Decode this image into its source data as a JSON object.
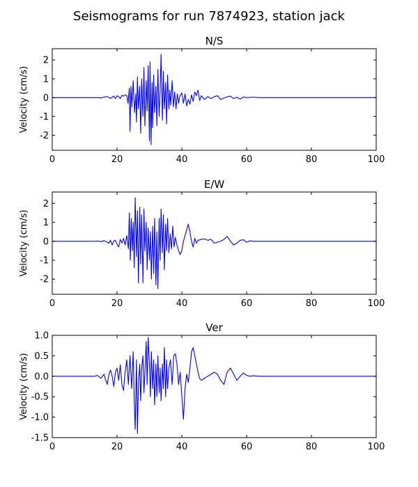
{
  "title": "Seismograms for run 7874923, station jack",
  "chart_data": [
    {
      "type": "line",
      "title": "N/S",
      "xlabel": "",
      "ylabel": "Velocity (cm/s)",
      "xlim": [
        0,
        100
      ],
      "ylim": [
        -2.8,
        2.6
      ],
      "xticks": [
        0,
        20,
        40,
        60,
        80,
        100
      ],
      "yticks": [
        -2,
        -1,
        0,
        1,
        2
      ],
      "grid": false,
      "color": "#0000ff",
      "series": [
        {
          "x": [
            0,
            12,
            14,
            15,
            16,
            17,
            18,
            19,
            19.5,
            20,
            20.5,
            21,
            21.5,
            22,
            22.5,
            23,
            23.4,
            23.8,
            24,
            24.3,
            24.6,
            25,
            25.4,
            25.8,
            26,
            26.3,
            26.6,
            27,
            27.3,
            27.6,
            28,
            28.3,
            28.6,
            29,
            29.3,
            29.6,
            30,
            30.2,
            30.5,
            30.8,
            31,
            31.3,
            31.6,
            32,
            32.3,
            32.6,
            33,
            33.3,
            33.6,
            34,
            34.3,
            34.6,
            35,
            35.3,
            35.6,
            36,
            36.3,
            36.6,
            37,
            37.4,
            37.8,
            38.2,
            38.6,
            39,
            39.4,
            40,
            40.5,
            41,
            41.5,
            42,
            42.5,
            43,
            43.5,
            44,
            44.5,
            45,
            45.5,
            46,
            47,
            48,
            49,
            50,
            51,
            52,
            53,
            54,
            55,
            56,
            57,
            58,
            59,
            60,
            62,
            64,
            70,
            80,
            90,
            100
          ],
          "y": [
            0,
            0,
            0,
            -0.02,
            0.03,
            0.05,
            -0.04,
            0.08,
            -0.05,
            0.1,
            0.05,
            -0.05,
            0.12,
            0.08,
            0.15,
            0.1,
            -0.3,
            0.5,
            -1.8,
            0.6,
            -0.5,
            0.9,
            -0.8,
            0.2,
            -1.3,
            1.1,
            -0.6,
            0.6,
            -1.9,
            1.0,
            -1.0,
            1.6,
            -1.5,
            0.9,
            -0.7,
            1.7,
            -2.3,
            1.9,
            -2.5,
            0.8,
            -1.6,
            1.2,
            -0.8,
            0.6,
            -1.5,
            1.5,
            -1.0,
            0.3,
            2.3,
            -1.2,
            1.4,
            -0.6,
            0.8,
            -1.4,
            1.2,
            -0.6,
            0.4,
            -0.4,
            0.9,
            -0.5,
            0.3,
            -0.6,
            0.2,
            -0.3,
            0.1,
            0.25,
            -0.3,
            0.2,
            -0.45,
            -0.1,
            -0.35,
            0.15,
            -0.2,
            0.3,
            0.1,
            0.4,
            -0.15,
            0.1,
            -0.1,
            0.05,
            -0.05,
            0.05,
            0.1,
            -0.1,
            -0.02,
            0.04,
            0.08,
            -0.05,
            0.02,
            -0.08,
            0.03,
            0.0,
            0.02,
            0,
            0,
            0,
            0,
            0
          ]
        }
      ]
    },
    {
      "type": "line",
      "title": "E/W",
      "xlabel": "",
      "ylabel": "Velocity (cm/s)",
      "xlim": [
        0,
        100
      ],
      "ylim": [
        -2.8,
        2.6
      ],
      "xticks": [
        0,
        20,
        40,
        60,
        80,
        100
      ],
      "yticks": [
        -2,
        -1,
        0,
        1,
        2
      ],
      "grid": false,
      "color": "#0000ff",
      "series": [
        {
          "x": [
            0,
            13,
            14,
            15,
            16,
            17,
            17.5,
            18,
            18.5,
            19,
            19.5,
            20,
            20.5,
            21,
            21.5,
            22,
            22.5,
            23,
            23.5,
            23.8,
            24.1,
            24.4,
            24.7,
            25,
            25.3,
            25.6,
            26,
            26.3,
            26.6,
            27,
            27.3,
            27.6,
            28,
            28.3,
            28.6,
            29,
            29.3,
            29.6,
            30,
            30.3,
            30.6,
            31,
            31.3,
            31.6,
            32,
            32.3,
            32.6,
            33,
            33.3,
            33.6,
            34,
            34.3,
            34.6,
            35,
            35.3,
            35.6,
            36,
            36.4,
            36.8,
            37.2,
            37.6,
            38,
            38.5,
            39,
            39.5,
            40,
            40.5,
            41,
            41.5,
            42,
            42.5,
            43,
            43.5,
            44,
            44.5,
            45,
            46,
            47,
            48,
            49,
            50,
            51,
            52,
            53,
            54,
            55,
            56,
            57,
            58,
            59,
            60,
            61,
            62,
            64,
            70,
            80,
            90,
            100
          ],
          "y": [
            0,
            0,
            0.01,
            -0.02,
            0.03,
            -0.05,
            -0.1,
            0.05,
            -0.2,
            0.02,
            0.05,
            -0.15,
            -0.3,
            0.1,
            -0.1,
            0.15,
            -0.2,
            0.3,
            -0.4,
            1.5,
            -1.0,
            1.2,
            -0.5,
            1.0,
            -1.4,
            2.3,
            -0.8,
            1.6,
            -2.2,
            1.8,
            -1.2,
            1.4,
            -2.2,
            1.7,
            -0.5,
            1.0,
            -1.5,
            0.7,
            -1.0,
            0.5,
            -2.0,
            0.8,
            -1.7,
            1.2,
            -2.3,
            0.5,
            -2.5,
            1.2,
            -1.0,
            1.7,
            -0.6,
            1.4,
            -1.5,
            0.9,
            -0.5,
            1.2,
            -0.6,
            0.4,
            -0.4,
            0.8,
            -0.3,
            0.2,
            -0.2,
            -0.5,
            -0.7,
            -0.5,
            0.0,
            0.3,
            0.6,
            0.9,
            0.5,
            0.0,
            -0.3,
            0.15,
            -0.1,
            0.05,
            0.1,
            0.12,
            0.05,
            0.1,
            -0.1,
            -0.05,
            0.0,
            0.1,
            0.25,
            0.0,
            -0.2,
            -0.1,
            0.05,
            0.08,
            -0.05,
            0.02,
            0.0,
            0,
            0,
            0,
            0,
            0
          ]
        }
      ]
    },
    {
      "type": "line",
      "title": "Ver",
      "xlabel": "",
      "ylabel": "Velocity (cm/s)",
      "xlim": [
        0,
        100
      ],
      "ylim": [
        -1.5,
        1.0
      ],
      "xticks": [
        0,
        20,
        40,
        60,
        80,
        100
      ],
      "yticks": [
        -1.5,
        -1.0,
        -0.5,
        0.0,
        0.5,
        1.0
      ],
      "grid": false,
      "color": "#0000ff",
      "series": [
        {
          "x": [
            0,
            13,
            14,
            15,
            16,
            16.5,
            17,
            17.5,
            18,
            18.5,
            19,
            19.5,
            20,
            20.5,
            21,
            21.5,
            22,
            22.5,
            23,
            23.5,
            24,
            24.5,
            25,
            25.3,
            25.6,
            26,
            26.3,
            26.6,
            27,
            27.3,
            27.6,
            28,
            28.3,
            28.6,
            29,
            29.3,
            29.6,
            30,
            30.3,
            30.6,
            31,
            31.3,
            31.6,
            32,
            32.3,
            32.6,
            33,
            33.3,
            33.6,
            34,
            34.3,
            34.6,
            35,
            35.3,
            35.6,
            36,
            36.5,
            37,
            37.5,
            38,
            38.5,
            39,
            39.5,
            40,
            40.5,
            41,
            41.5,
            42,
            42.5,
            43,
            43.5,
            44,
            44.5,
            45,
            45.5,
            46,
            47,
            48,
            49,
            50,
            51,
            52,
            53,
            54,
            55,
            56,
            57,
            58,
            59,
            60,
            61,
            62,
            64,
            70,
            80,
            90,
            100
          ],
          "y": [
            0,
            0,
            0.02,
            -0.05,
            0.05,
            -0.1,
            -0.2,
            0.05,
            0.15,
            0.0,
            -0.25,
            0.1,
            0.2,
            -0.1,
            0.28,
            -0.2,
            -0.35,
            0.1,
            0.4,
            -0.2,
            0.5,
            -0.3,
            0.6,
            -0.6,
            -1.3,
            0.4,
            -1.4,
            -0.2,
            0.3,
            -0.6,
            0.2,
            0.5,
            -0.4,
            0.1,
            0.85,
            -0.2,
            0.95,
            0.3,
            -0.5,
            0.6,
            -0.3,
            0.4,
            -0.7,
            0.3,
            -0.5,
            0.5,
            -0.4,
            0.2,
            -0.6,
            0.3,
            -0.3,
            0.7,
            -0.5,
            0.4,
            -0.3,
            0.2,
            0.4,
            -0.2,
            0.5,
            0.55,
            0.3,
            -0.2,
            0.1,
            -0.5,
            -1.05,
            -0.3,
            0.05,
            -0.15,
            0.2,
            0.6,
            0.7,
            0.5,
            0.3,
            0.1,
            -0.05,
            -0.1,
            -0.05,
            0.0,
            0.05,
            0.1,
            0.05,
            -0.1,
            -0.2,
            0.1,
            0.2,
            0.05,
            -0.1,
            0.0,
            0.08,
            0.02,
            0.0,
            0.01,
            0,
            0,
            0,
            0,
            0
          ]
        }
      ]
    }
  ]
}
